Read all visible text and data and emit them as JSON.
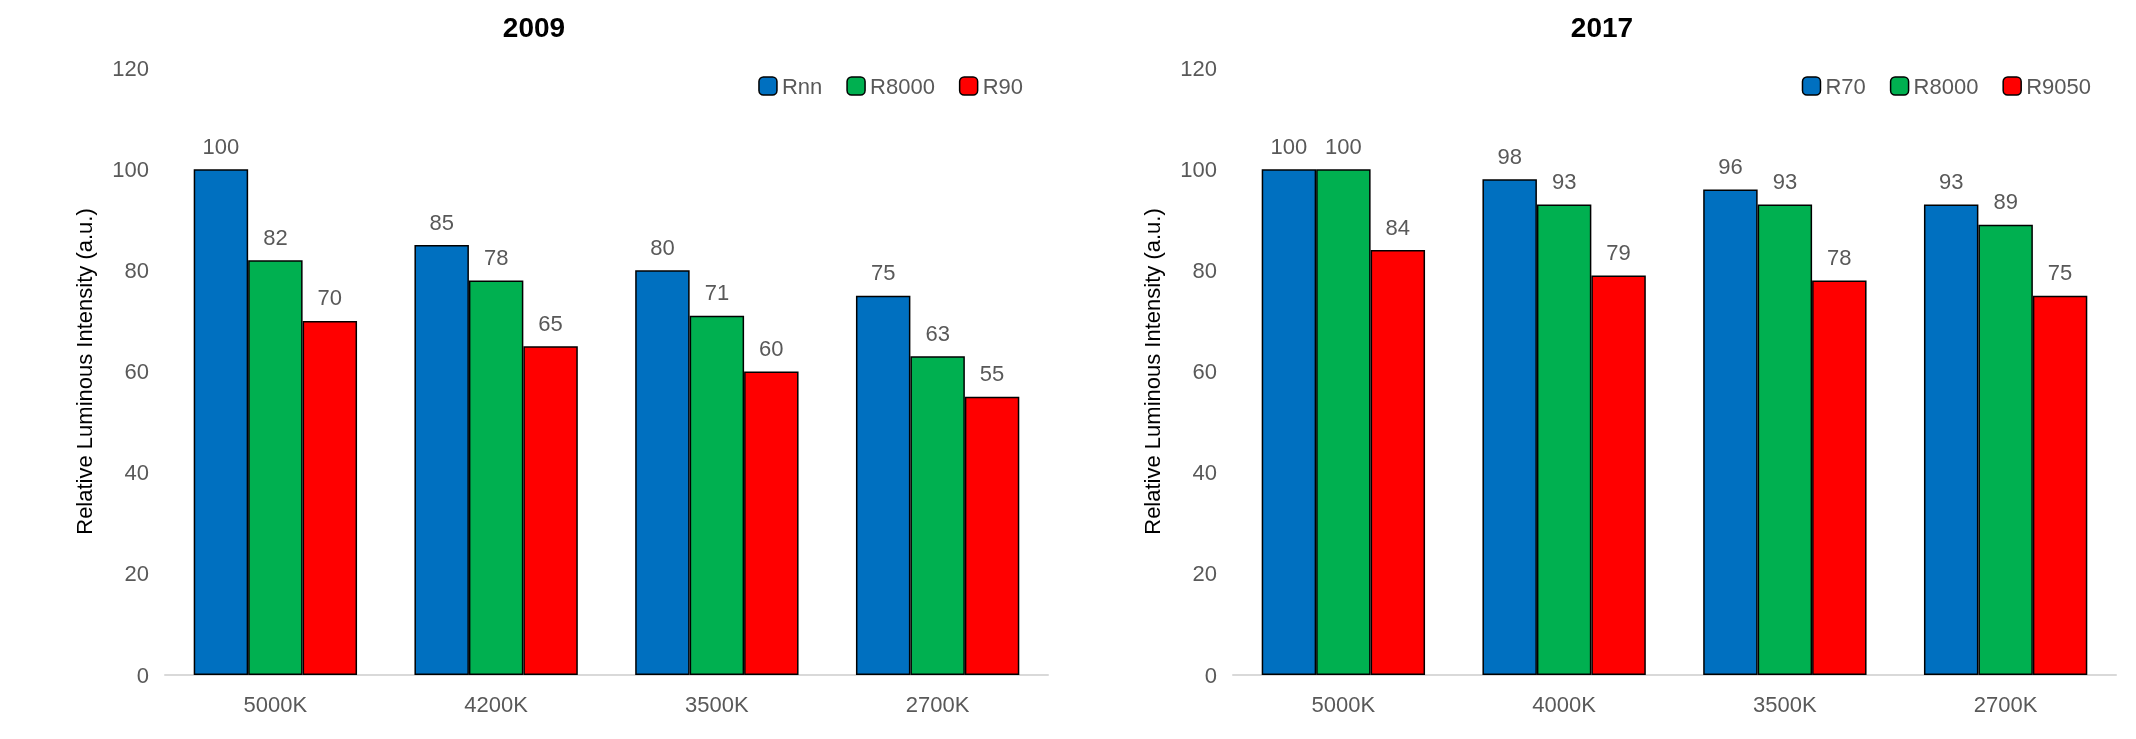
{
  "chart_data": [
    {
      "type": "bar",
      "title": "2009",
      "ylabel": "Relative Luminous Intensity (a.u.)",
      "categories": [
        "5000K",
        "4200K",
        "3500K",
        "2700K"
      ],
      "series": [
        {
          "name": "Rnn",
          "color": "#0070c0",
          "values": [
            100,
            85,
            80,
            75
          ]
        },
        {
          "name": "R8000",
          "color": "#00b050",
          "values": [
            82,
            78,
            71,
            63
          ]
        },
        {
          "name": "R90",
          "color": "#ff0000",
          "values": [
            70,
            65,
            60,
            55
          ]
        }
      ],
      "ylim": [
        0,
        120
      ],
      "yticks": [
        0,
        20,
        40,
        60,
        80,
        100,
        120
      ],
      "grid": false,
      "legend": "top right",
      "data_labels": true
    },
    {
      "type": "bar",
      "title": "2017",
      "ylabel": "Relative Luminous Intensity (a.u.)",
      "categories": [
        "5000K",
        "4000K",
        "3500K",
        "2700K"
      ],
      "series": [
        {
          "name": "R70",
          "color": "#0070c0",
          "values": [
            100,
            98,
            96,
            93
          ]
        },
        {
          "name": "R8000",
          "color": "#00b050",
          "values": [
            100,
            93,
            93,
            89
          ]
        },
        {
          "name": "R9050",
          "color": "#ff0000",
          "values": [
            84,
            79,
            78,
            75
          ]
        }
      ],
      "ylim": [
        0,
        120
      ],
      "yticks": [
        0,
        20,
        40,
        60,
        80,
        100,
        120
      ],
      "grid": false,
      "legend": "top right",
      "data_labels": true
    }
  ]
}
